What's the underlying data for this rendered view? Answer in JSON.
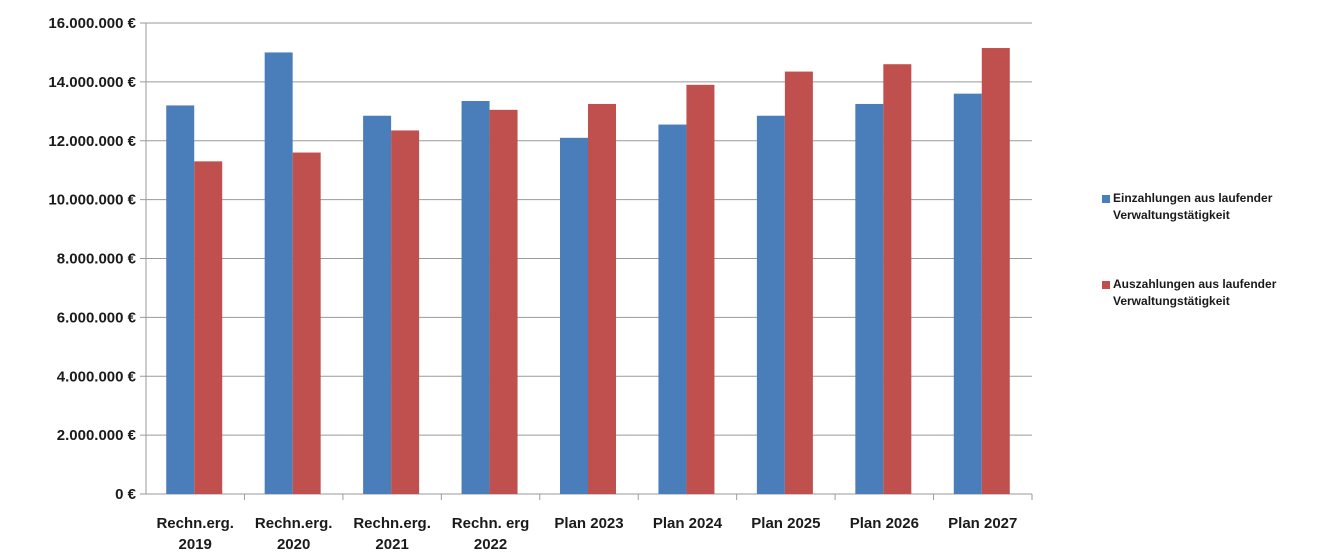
{
  "chart_data": {
    "type": "bar",
    "categories": [
      "Rechn.erg.\n2019",
      "Rechn.erg.\n2020",
      "Rechn.erg.\n2021",
      "Rechn. erg\n2022",
      "Plan 2023",
      "Plan 2024",
      "Plan 2025",
      "Plan 2026",
      "Plan 2027"
    ],
    "series": [
      {
        "name": "Einzahlungen aus laufender\nVerwaltungstätigkeit",
        "color": "#4a7ebb",
        "values": [
          13200000,
          15000000,
          12850000,
          13350000,
          12100000,
          12550000,
          12850000,
          13250000,
          13600000
        ]
      },
      {
        "name": "Auszahlungen aus laufender\nVerwaltungstätigkeit",
        "color": "#c0504d",
        "values": [
          11300000,
          11600000,
          12350000,
          13050000,
          13250000,
          13900000,
          14350000,
          14600000,
          15150000
        ]
      }
    ],
    "ylim": [
      0,
      16000000
    ],
    "yticks": [
      0,
      2000000,
      4000000,
      6000000,
      8000000,
      10000000,
      12000000,
      14000000,
      16000000
    ],
    "ytick_labels": [
      "0 €",
      "2.000.000 €",
      "4.000.000 €",
      "6.000.000 €",
      "8.000.000 €",
      "10.000.000 €",
      "12.000.000 €",
      "14.000.000 €",
      "16.000.000 €"
    ],
    "grid": true,
    "legend_position": "right",
    "title": "",
    "xlabel": "",
    "ylabel": ""
  }
}
